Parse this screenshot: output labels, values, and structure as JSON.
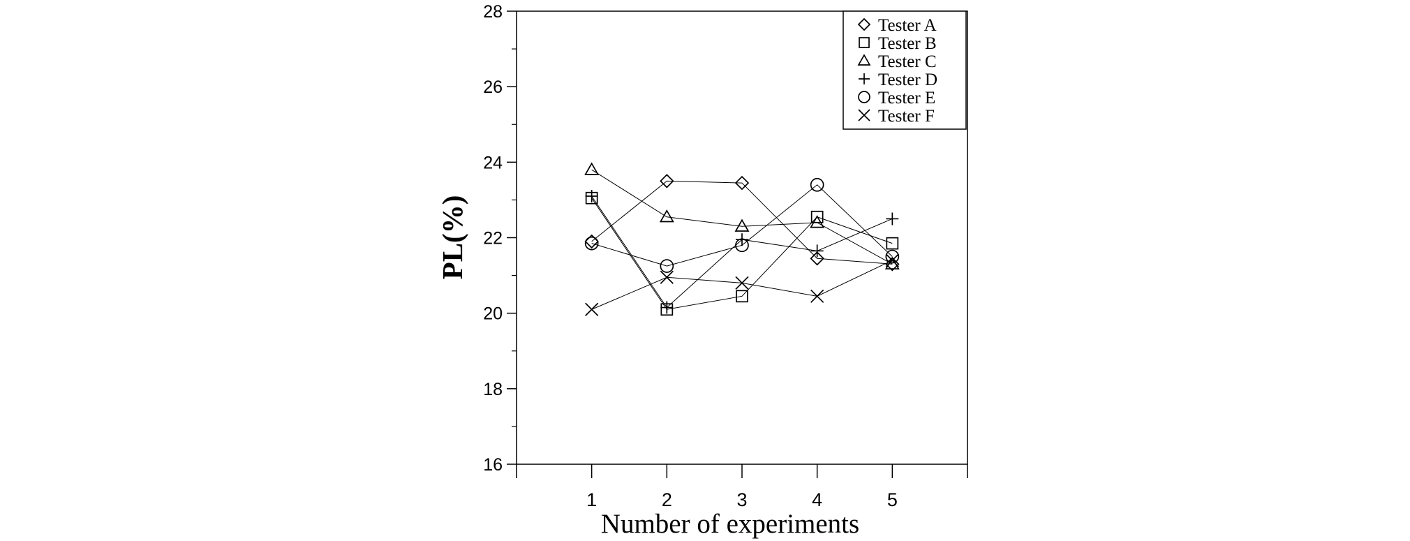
{
  "chart_data": {
    "type": "line",
    "title": "",
    "xlabel": "Number of experiments",
    "ylabel": "PL(%)",
    "x": [
      1,
      2,
      3,
      4,
      5
    ],
    "xlim": [
      0,
      6
    ],
    "ylim": [
      16,
      28
    ],
    "yticks": [
      16,
      18,
      20,
      22,
      24,
      26,
      28
    ],
    "xticks": [
      1,
      2,
      3,
      4,
      5
    ],
    "grid": false,
    "legend_position": "top-right",
    "line_color": "#000000",
    "series": [
      {
        "name": "Tester A",
        "marker": "diamond",
        "values": [
          21.9,
          23.5,
          23.45,
          21.45,
          21.3
        ]
      },
      {
        "name": "Tester B",
        "marker": "square",
        "values": [
          23.05,
          20.1,
          20.45,
          22.55,
          21.85
        ]
      },
      {
        "name": "Tester C",
        "marker": "triangle",
        "values": [
          23.8,
          22.55,
          22.3,
          22.4,
          21.3
        ]
      },
      {
        "name": "Tester D",
        "marker": "plus",
        "values": [
          23.1,
          20.15,
          21.95,
          21.65,
          22.5
        ]
      },
      {
        "name": "Tester E",
        "marker": "circle",
        "values": [
          21.85,
          21.25,
          21.8,
          23.4,
          21.5
        ]
      },
      {
        "name": "Tester F",
        "marker": "x",
        "values": [
          20.1,
          20.95,
          20.8,
          20.45,
          21.4
        ]
      }
    ]
  }
}
